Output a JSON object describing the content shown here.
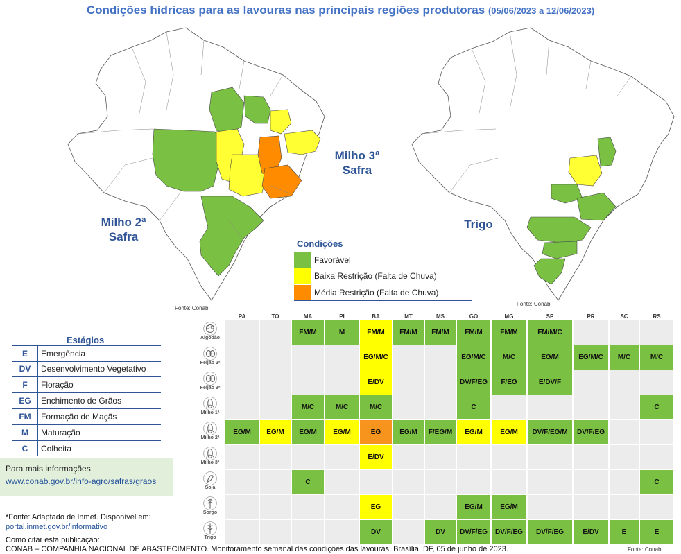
{
  "header": {
    "title": "Condições hídricas para as lavouras nas principais regiões produtoras",
    "dates": "(05/06/2023 a 12/06/2023)"
  },
  "maps": {
    "milho2": {
      "line1": "Milho 2ª",
      "line2": "Safra"
    },
    "milho3": {
      "line1": "Milho 3ª",
      "line2": "Safra"
    },
    "trigo": {
      "label": "Trigo"
    },
    "source_left": "Fonte: Conab",
    "source_right": "Fonte: Conab"
  },
  "legend": {
    "title": "Condições",
    "items": [
      {
        "label": "Favorável",
        "color": "#7ac143"
      },
      {
        "label": "Baixa Restrição (Falta de Chuva)",
        "color": "#ffff00"
      },
      {
        "label": "Média Restrição (Falta de Chuva)",
        "color": "#ff8c00"
      }
    ]
  },
  "stages": {
    "title": "Estágios",
    "items": [
      {
        "code": "E",
        "name": "Emergência"
      },
      {
        "code": "DV",
        "name": "Desenvolvimento Vegetativo"
      },
      {
        "code": "F",
        "name": "Floração"
      },
      {
        "code": "EG",
        "name": "Enchimento de Grãos"
      },
      {
        "code": "FM",
        "name": "Formação de Maçãs"
      },
      {
        "code": "M",
        "name": "Maturação"
      },
      {
        "code": "C",
        "name": "Colheita"
      }
    ]
  },
  "info": {
    "title": "Para mais informações",
    "link": "www.conab.gov.br/info-agro/safras/graos"
  },
  "footer": {
    "source_line": "*Fonte: Adaptado de Inmet. Disponível em:",
    "source_link": "portal.inmet.gov.br/informativo",
    "cite_label": "Como citar esta publicação:",
    "cite_text": "CONAB – COMPANHIA NACIONAL DE ABASTECIMENTO. Monitoramento semanal das condições das lavouras. Brasília, DF, 05 de junho de 2023.",
    "table_source": "Fonte: Conab"
  },
  "table": {
    "states": [
      "PA",
      "TO",
      "MA",
      "PI",
      "BA",
      "MT",
      "MS",
      "GO",
      "MG",
      "SP",
      "PR",
      "SC",
      "RS"
    ],
    "crops": [
      {
        "name": "Algodão",
        "icon": "cotton-icon",
        "cells": [
          null,
          null,
          [
            "FM/M",
            "G"
          ],
          [
            "M",
            "G"
          ],
          [
            "FM/M",
            "Y"
          ],
          [
            "FM/M",
            "G"
          ],
          [
            "FM/M",
            "G"
          ],
          [
            "FM/M",
            "G"
          ],
          [
            "FM/M",
            "G"
          ],
          [
            "FM/M/C",
            "G"
          ],
          null,
          null,
          null
        ]
      },
      {
        "name": "Feijão 2ª",
        "icon": "bean-icon",
        "cells": [
          null,
          null,
          null,
          null,
          [
            "EG/M/C",
            "Y"
          ],
          null,
          null,
          [
            "EG/M/C",
            "G"
          ],
          [
            "M/C",
            "G"
          ],
          [
            "EG/M",
            "G"
          ],
          [
            "EG/M/C",
            "G"
          ],
          [
            "M/C",
            "G"
          ],
          [
            "M/C",
            "G"
          ]
        ]
      },
      {
        "name": "Feijão 3ª",
        "icon": "bean-icon",
        "cells": [
          null,
          null,
          null,
          null,
          [
            "E/DV",
            "Y"
          ],
          null,
          null,
          [
            "DV/F/EG",
            "G"
          ],
          [
            "F/EG",
            "G"
          ],
          [
            "E/DV/F",
            "G"
          ],
          null,
          null,
          null
        ]
      },
      {
        "name": "Milho 1ª",
        "icon": "corn-icon",
        "cells": [
          null,
          null,
          [
            "M/C",
            "G"
          ],
          [
            "M/C",
            "G"
          ],
          [
            "M/C",
            "G"
          ],
          null,
          null,
          [
            "C",
            "G"
          ],
          null,
          null,
          null,
          null,
          [
            "C",
            "G"
          ]
        ]
      },
      {
        "name": "Milho 2ª",
        "icon": "corn-icon",
        "cells": [
          [
            "EG/M",
            "G"
          ],
          [
            "EG/M",
            "Y"
          ],
          [
            "EG/M",
            "G"
          ],
          [
            "EG/M",
            "Y"
          ],
          [
            "EG",
            "O"
          ],
          [
            "EG/M",
            "G"
          ],
          [
            "F/EG/M",
            "G"
          ],
          [
            "EG/M",
            "Y"
          ],
          [
            "EG/M",
            "Y"
          ],
          [
            "DV/F/EG/M",
            "G"
          ],
          [
            "DV/F/EG",
            "G"
          ],
          null,
          null
        ]
      },
      {
        "name": "Milho 3ª",
        "icon": "corn-icon",
        "cells": [
          null,
          null,
          null,
          null,
          [
            "E/DV",
            "Y"
          ],
          null,
          null,
          null,
          null,
          null,
          null,
          null,
          null
        ]
      },
      {
        "name": "Soja",
        "icon": "soy-icon",
        "cells": [
          null,
          null,
          [
            "C",
            "G"
          ],
          null,
          null,
          null,
          null,
          null,
          null,
          null,
          null,
          null,
          [
            "C",
            "G"
          ]
        ]
      },
      {
        "name": "Sorgo",
        "icon": "sorghum-icon",
        "cells": [
          null,
          null,
          null,
          null,
          [
            "EG",
            "Y"
          ],
          null,
          null,
          [
            "EG/M",
            "G"
          ],
          [
            "EG/M",
            "G"
          ],
          null,
          null,
          null,
          null
        ]
      },
      {
        "name": "Trigo",
        "icon": "wheat-icon",
        "cells": [
          null,
          null,
          null,
          null,
          [
            "DV",
            "G"
          ],
          null,
          [
            "DV",
            "G"
          ],
          [
            "DV/F/EG",
            "G"
          ],
          [
            "DV/F/EG",
            "G"
          ],
          [
            "DV/F/EG",
            "G"
          ],
          [
            "E/DV",
            "G"
          ],
          [
            "E",
            "G"
          ],
          [
            "E",
            "G"
          ]
        ]
      }
    ]
  }
}
